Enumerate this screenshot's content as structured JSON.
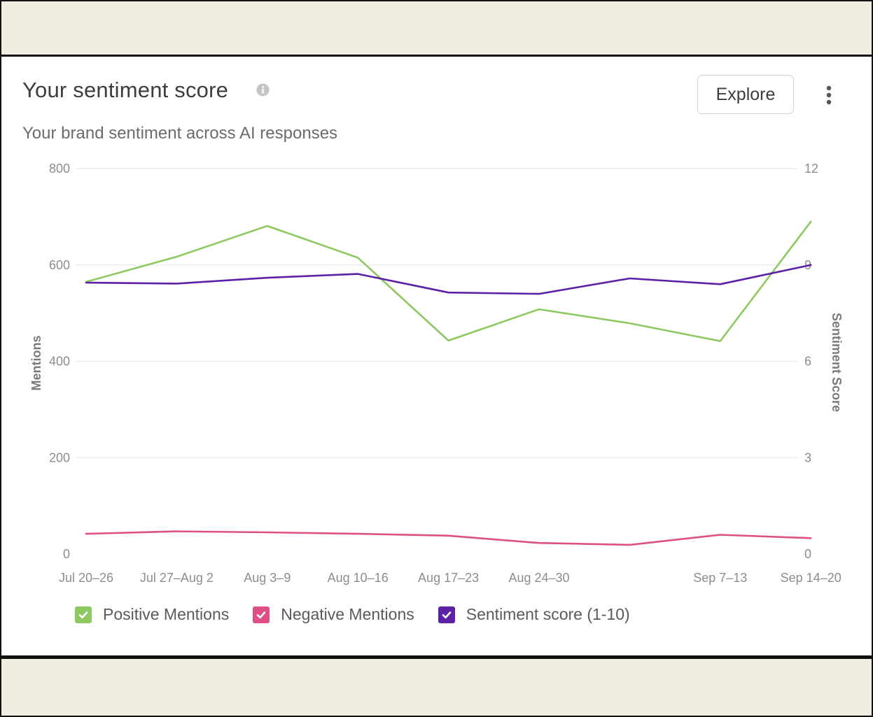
{
  "card": {
    "title": "Your sentiment score",
    "subtitle": "Your brand sentiment across AI responses",
    "explore_label": "Explore",
    "info_icon": "info-icon",
    "menu_icon": "kebab-menu-icon"
  },
  "colors": {
    "positive": "#8dc860",
    "negative": "#df4f86",
    "sentiment": "#5b21a6",
    "grid": "#ececec",
    "axis_text": "#8d8d8d"
  },
  "chart_data": {
    "type": "line",
    "title": "Your sentiment score",
    "categories": [
      "Jul 20–26",
      "Jul 27–Aug 2",
      "Aug 3–9",
      "Aug 10–16",
      "Aug 17–23",
      "Aug 24–30",
      "",
      "Sep 7–13",
      "Sep 14–20"
    ],
    "ylabel": "Mentions",
    "y2label": "Sentiment Score",
    "ylim": [
      0,
      800
    ],
    "y2lim": [
      0,
      12
    ],
    "yticks": [
      0,
      200,
      400,
      600,
      800
    ],
    "y2ticks": [
      0,
      3,
      6,
      9,
      12
    ],
    "grid": true,
    "legend_position": "bottom-left",
    "series": [
      {
        "name": "Positive Mentions",
        "axis": "left",
        "color": "#8dc860",
        "values": [
          565,
          617,
          681,
          615,
          443,
          508,
          479,
          442,
          690
        ]
      },
      {
        "name": "Negative Mentions",
        "axis": "left",
        "color": "#df4f86",
        "values": [
          42,
          47,
          45,
          42,
          38,
          23,
          19,
          40,
          33
        ]
      },
      {
        "name": "Sentiment score (1-10)",
        "axis": "right",
        "color": "#5b21a6",
        "values": [
          8.45,
          8.42,
          8.6,
          8.72,
          8.14,
          8.1,
          8.58,
          8.4,
          9.0
        ]
      }
    ]
  }
}
